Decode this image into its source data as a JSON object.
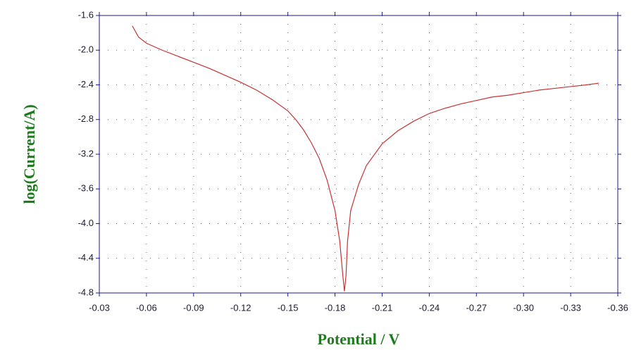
{
  "chart_data": {
    "type": "line",
    "x_label": "Potential / V",
    "y_label": "log(Current/A)",
    "x": [
      -0.051,
      -0.055,
      -0.06,
      -0.07,
      -0.08,
      -0.09,
      -0.1,
      -0.11,
      -0.12,
      -0.13,
      -0.14,
      -0.15,
      -0.155,
      -0.16,
      -0.165,
      -0.17,
      -0.175,
      -0.18,
      -0.183,
      -0.185,
      -0.186,
      -0.187,
      -0.188,
      -0.19,
      -0.195,
      -0.2,
      -0.21,
      -0.22,
      -0.23,
      -0.24,
      -0.25,
      -0.26,
      -0.27,
      -0.28,
      -0.29,
      -0.3,
      -0.31,
      -0.32,
      -0.33,
      -0.34,
      -0.348
    ],
    "series": [
      {
        "color": "#c83232",
        "values": [
          -1.72,
          -1.85,
          -1.92,
          -2.0,
          -2.07,
          -2.14,
          -2.21,
          -2.29,
          -2.37,
          -2.46,
          -2.57,
          -2.7,
          -2.8,
          -2.92,
          -3.07,
          -3.25,
          -3.5,
          -3.85,
          -4.2,
          -4.6,
          -4.78,
          -4.6,
          -4.2,
          -3.85,
          -3.55,
          -3.33,
          -3.08,
          -2.93,
          -2.82,
          -2.73,
          -2.67,
          -2.62,
          -2.58,
          -2.54,
          -2.52,
          -2.49,
          -2.46,
          -2.44,
          -2.42,
          -2.4,
          -2.38
        ]
      }
    ],
    "xlim": [
      -0.03,
      -0.36
    ],
    "ylim": [
      -4.8,
      -1.6
    ],
    "xticks": [
      -0.03,
      -0.06,
      -0.09,
      -0.12,
      -0.15,
      -0.18,
      -0.21,
      -0.24,
      -0.27,
      {
        "value": -0.3,
        "label": "-0.30"
      },
      -0.33,
      -0.36
    ],
    "yticks": [
      -1.6,
      {
        "value": -2.0,
        "label": "-2.0"
      },
      -2.4,
      -2.8,
      -3.2,
      -3.6,
      {
        "value": -4.0,
        "label": "-4.0"
      },
      -4.4,
      -4.8
    ],
    "grid": true,
    "axis_color": "#1a1a8c"
  }
}
